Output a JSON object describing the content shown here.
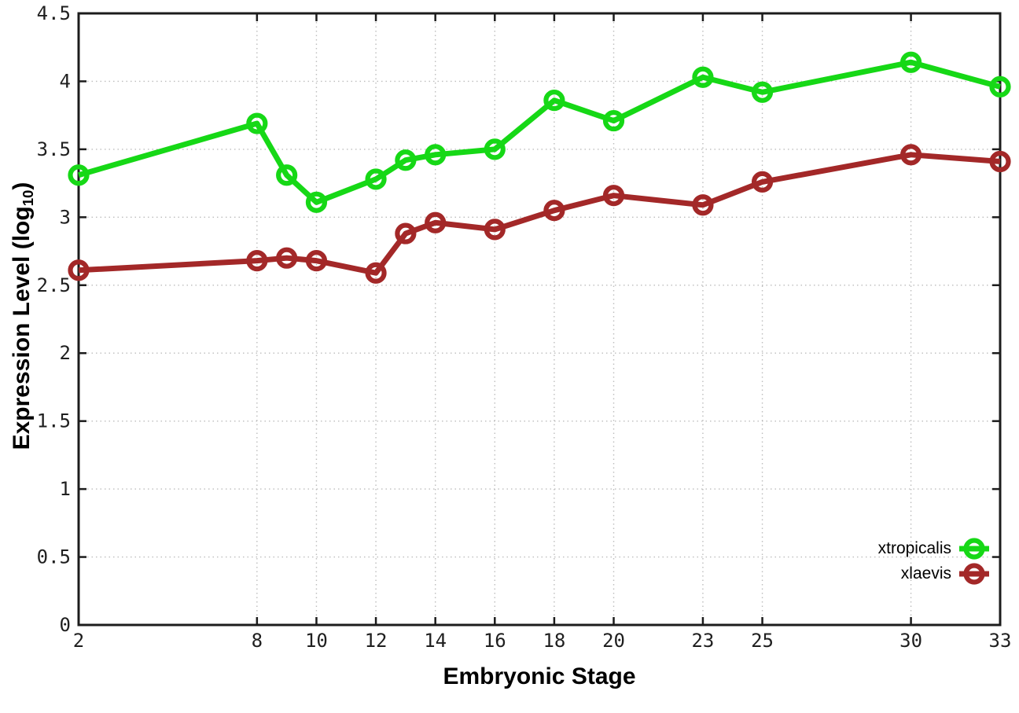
{
  "figure": {
    "background": "#ffffff",
    "axis_color": "#1c1c1c",
    "grid_color": "#bdbdbd",
    "tick_label_color": "#1f1f1f"
  },
  "chart_data": {
    "type": "line",
    "title": "",
    "xlabel": "Embryonic Stage",
    "ylabel": "Expression Level (log10)",
    "ylabel_parts": {
      "base": "Expression Level (log",
      "sub": "10",
      "end": ")"
    },
    "xlim": [
      2,
      33
    ],
    "ylim": [
      0,
      4.5
    ],
    "grid": true,
    "legend_position": "bottom-right",
    "x_tick_values": [
      2,
      8,
      10,
      12,
      14,
      16,
      18,
      20,
      23,
      25,
      30,
      33
    ],
    "x_tick_labels": [
      "2",
      "8",
      "10",
      "12",
      "14",
      "16",
      "18",
      "20",
      "23",
      "25",
      "30",
      "33"
    ],
    "y_tick_values": [
      0,
      0.5,
      1,
      1.5,
      2,
      2.5,
      3,
      3.5,
      4,
      4.5
    ],
    "y_tick_labels": [
      "0",
      "0.5",
      "1",
      "1.5",
      "2",
      "2.5",
      "3",
      "3.5",
      "4",
      "4.5"
    ],
    "x": [
      2,
      8,
      9,
      10,
      12,
      13,
      14,
      16,
      18,
      20,
      23,
      25,
      30,
      33
    ],
    "series": [
      {
        "name": "xtropicalis",
        "color": "#16d816",
        "values": [
          3.31,
          3.69,
          3.31,
          3.11,
          3.28,
          3.42,
          3.46,
          3.5,
          3.86,
          3.71,
          4.03,
          3.92,
          4.14,
          3.96
        ]
      },
      {
        "name": "xlaevis",
        "color": "#a32828",
        "values": [
          2.61,
          2.68,
          2.7,
          2.68,
          2.59,
          2.88,
          2.96,
          2.91,
          3.05,
          3.16,
          3.09,
          3.26,
          3.46,
          3.41
        ]
      }
    ]
  }
}
